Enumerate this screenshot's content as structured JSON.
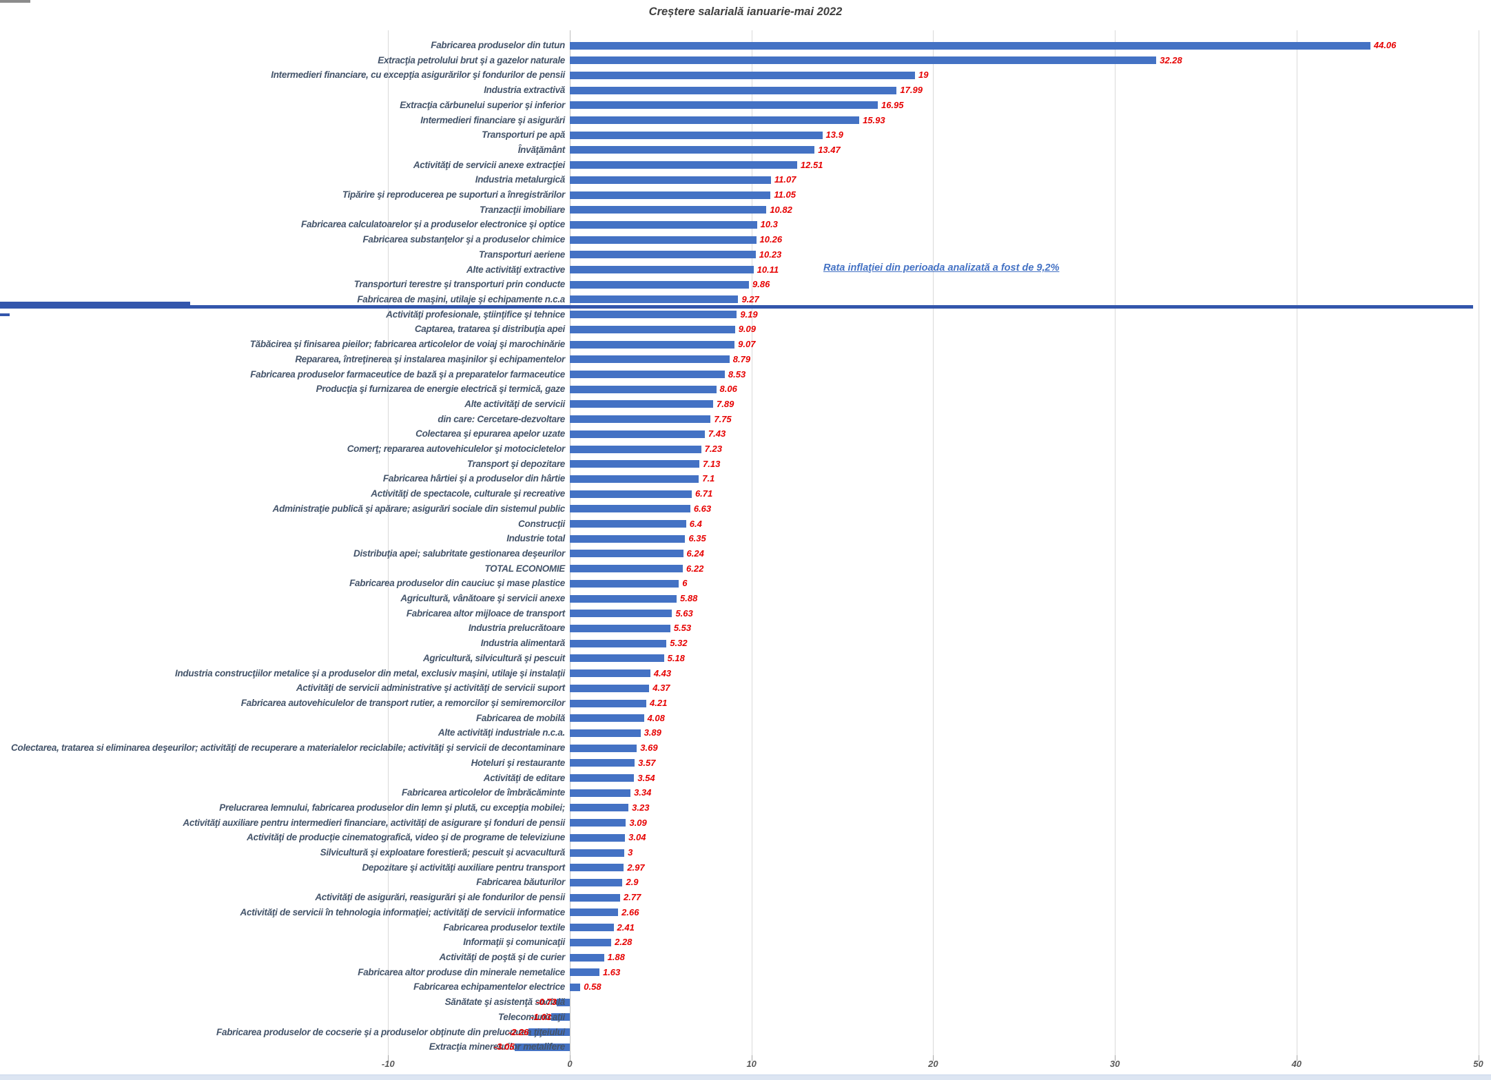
{
  "title": "Creștere salarială ianuarie-mai 2022",
  "annotation": {
    "text": "Rata inflaţiei din perioada analizată a fost de 9,2%",
    "color": "#4472C4",
    "underlined": true
  },
  "reference_line": {
    "color": "#3356AC",
    "orientation": "horizontal"
  },
  "chart_data": {
    "type": "bar",
    "orientation": "horizontal-bars",
    "title": "Creștere salarială ianuarie-mai 2022",
    "xlabel": "",
    "ylabel": "",
    "xlim": [
      -10,
      50
    ],
    "x_ticks": [
      -10,
      0,
      10,
      20,
      30,
      40,
      50
    ],
    "grid": true,
    "legend": "none",
    "bar_color": "#4472C4",
    "value_label_color": "#e60000",
    "category_label_color": "#44546A",
    "categories": [
      "Fabricarea produselor din tutun",
      "Extracţia petrolului brut şi a gazelor naturale",
      "Intermedieri financiare, cu excepţia asigurărilor şi fondurilor de pensii",
      "Industria extractivă",
      "Extracţia cărbunelui superior şi inferior",
      "Intermedieri financiare şi asigurări",
      "Transporturi pe apă",
      "Învăţământ",
      "Activităţi de servicii anexe extracţiei",
      "Industria metalurgică",
      "Tipărire şi reproducerea pe suporturi a înregistrărilor",
      "Tranzacţii imobiliare",
      "Fabricarea calculatoarelor şi a produselor electronice şi optice",
      "Fabricarea substanţelor şi a produselor chimice",
      "Transporturi aeriene",
      "Alte activităţi extractive",
      "Transporturi terestre şi transporturi prin conducte",
      "Fabricarea de maşini, utilaje şi echipamente n.c.a",
      "Activităţi profesionale, ştiinţifice şi tehnice",
      "Captarea, tratarea şi distribuţia apei",
      "Tăbăcirea şi finisarea pieilor; fabricarea articolelor de voiaj şi marochinărie",
      "Repararea, întreţinerea şi instalarea maşinilor şi echipamentelor",
      "Fabricarea produselor farmaceutice de bază şi a preparatelor farmaceutice",
      "Producţia şi furnizarea de energie electrică şi termică, gaze",
      "Alte activităţi de servicii",
      "din care: Cercetare-dezvoltare",
      "Colectarea şi epurarea apelor uzate",
      "Comerţ; repararea autovehiculelor şi motocicletelor",
      "Transport şi depozitare",
      "Fabricarea hârtiei şi a produselor din hârtie",
      "Activităţi de spectacole, culturale şi recreative",
      "Administraţie publică şi apărare; asigurări sociale din sistemul public",
      "Construcţii",
      "Industrie total",
      "Distribuţia apei; salubritate gestionarea deşeurilor",
      "TOTAL ECONOMIE",
      "Fabricarea produselor din cauciuc şi mase plastice",
      "Agricultură, vânătoare şi servicii anexe",
      "Fabricarea altor mijloace de transport",
      "Industria prelucrătoare",
      "Industria alimentară",
      "Agricultură, silvicultură şi pescuit",
      "Industria construcţiilor metalice şi a produselor din metal, exclusiv maşini, utilaje şi instalaţii",
      "Activităţi de servicii administrative şi activităţi de servicii suport",
      "Fabricarea autovehiculelor de transport rutier, a remorcilor şi semiremorcilor",
      "Fabricarea de mobilă",
      "Alte activităţi industriale n.c.a.",
      "Colectarea, tratarea si eliminarea deşeurilor; activităţi de recuperare a materialelor reciclabile; activităţi şi servicii de decontaminare",
      "Hoteluri şi restaurante",
      "Activităţi de editare",
      "Fabricarea articolelor de îmbrăcăminte",
      "Prelucrarea lemnului, fabricarea produselor din lemn şi plută, cu excepţia mobilei;",
      "Activităţi auxiliare pentru intermedieri financiare, activităţi de asigurare şi fonduri de pensii",
      "Activităţi de producţie cinematografică, video şi de programe de televiziune",
      "Silvicultură şi exploatare forestieră; pescuit şi acvacultură",
      "Depozitare şi activităţi auxiliare pentru transport",
      "Fabricarea băuturilor",
      "Activităţi de asigurări, reasigurări şi ale fondurilor de pensii",
      "Activităţi de servicii în tehnologia informaţiei; activităţi de servicii informatice",
      "Fabricarea produselor textile",
      "Informaţii şi comunicaţii",
      "Activităţi de poştă şi de curier",
      "Fabricarea altor produse din minerale nemetalice",
      "Fabricarea echipamentelor electrice",
      "Sănătate şi asistenţă socială",
      "Telecomunicaţii",
      "Fabricarea produselor de cocserie şi a produselor obţinute din prelucrarea ţiţeiului",
      "Extracţia minereurilor metalifere"
    ],
    "values": [
      44.06,
      32.28,
      19,
      17.99,
      16.95,
      15.93,
      13.9,
      13.47,
      12.51,
      11.07,
      11.05,
      10.82,
      10.3,
      10.26,
      10.23,
      10.11,
      9.86,
      9.27,
      9.19,
      9.09,
      9.07,
      8.79,
      8.53,
      8.06,
      7.89,
      7.75,
      7.43,
      7.23,
      7.13,
      7.1,
      6.71,
      6.63,
      6.4,
      6.35,
      6.24,
      6.22,
      6,
      5.88,
      5.63,
      5.53,
      5.32,
      5.18,
      4.43,
      4.37,
      4.21,
      4.08,
      3.89,
      3.69,
      3.57,
      3.54,
      3.34,
      3.23,
      3.09,
      3.04,
      3,
      2.97,
      2.9,
      2.77,
      2.66,
      2.41,
      2.28,
      1.88,
      1.63,
      0.58,
      -0.73,
      -1.03,
      -2.26,
      -3.05
    ],
    "value_labels": [
      "44.06",
      "32.28",
      "19",
      "17.99",
      "16.95",
      "15.93",
      "13.9",
      "13.47",
      "12.51",
      "11.07",
      "11.05",
      "10.82",
      "10.3",
      "10.26",
      "10.23",
      "10.11",
      "9.86",
      "9.27",
      "9.19",
      "9.09",
      "9.07",
      "8.79",
      "8.53",
      "8.06",
      "7.89",
      "7.75",
      "7.43",
      "7.23",
      "7.13",
      "7.1",
      "6.71",
      "6.63",
      "6.4",
      "6.35",
      "6.24",
      "6.22",
      "6",
      "5.88",
      "5.63",
      "5.53",
      "5.32",
      "5.18",
      "4.43",
      "4.37",
      "4.21",
      "4.08",
      "3.89",
      "3.69",
      "3.57",
      "3.54",
      "3.34",
      "3.23",
      "3.09",
      "3.04",
      "3",
      "2.97",
      "2.9",
      "2.77",
      "2.66",
      "2.41",
      "2.28",
      "1.88",
      "1.63",
      "0.58",
      "-0.73",
      "-1.03",
      "-2.26",
      "-3.05"
    ]
  }
}
